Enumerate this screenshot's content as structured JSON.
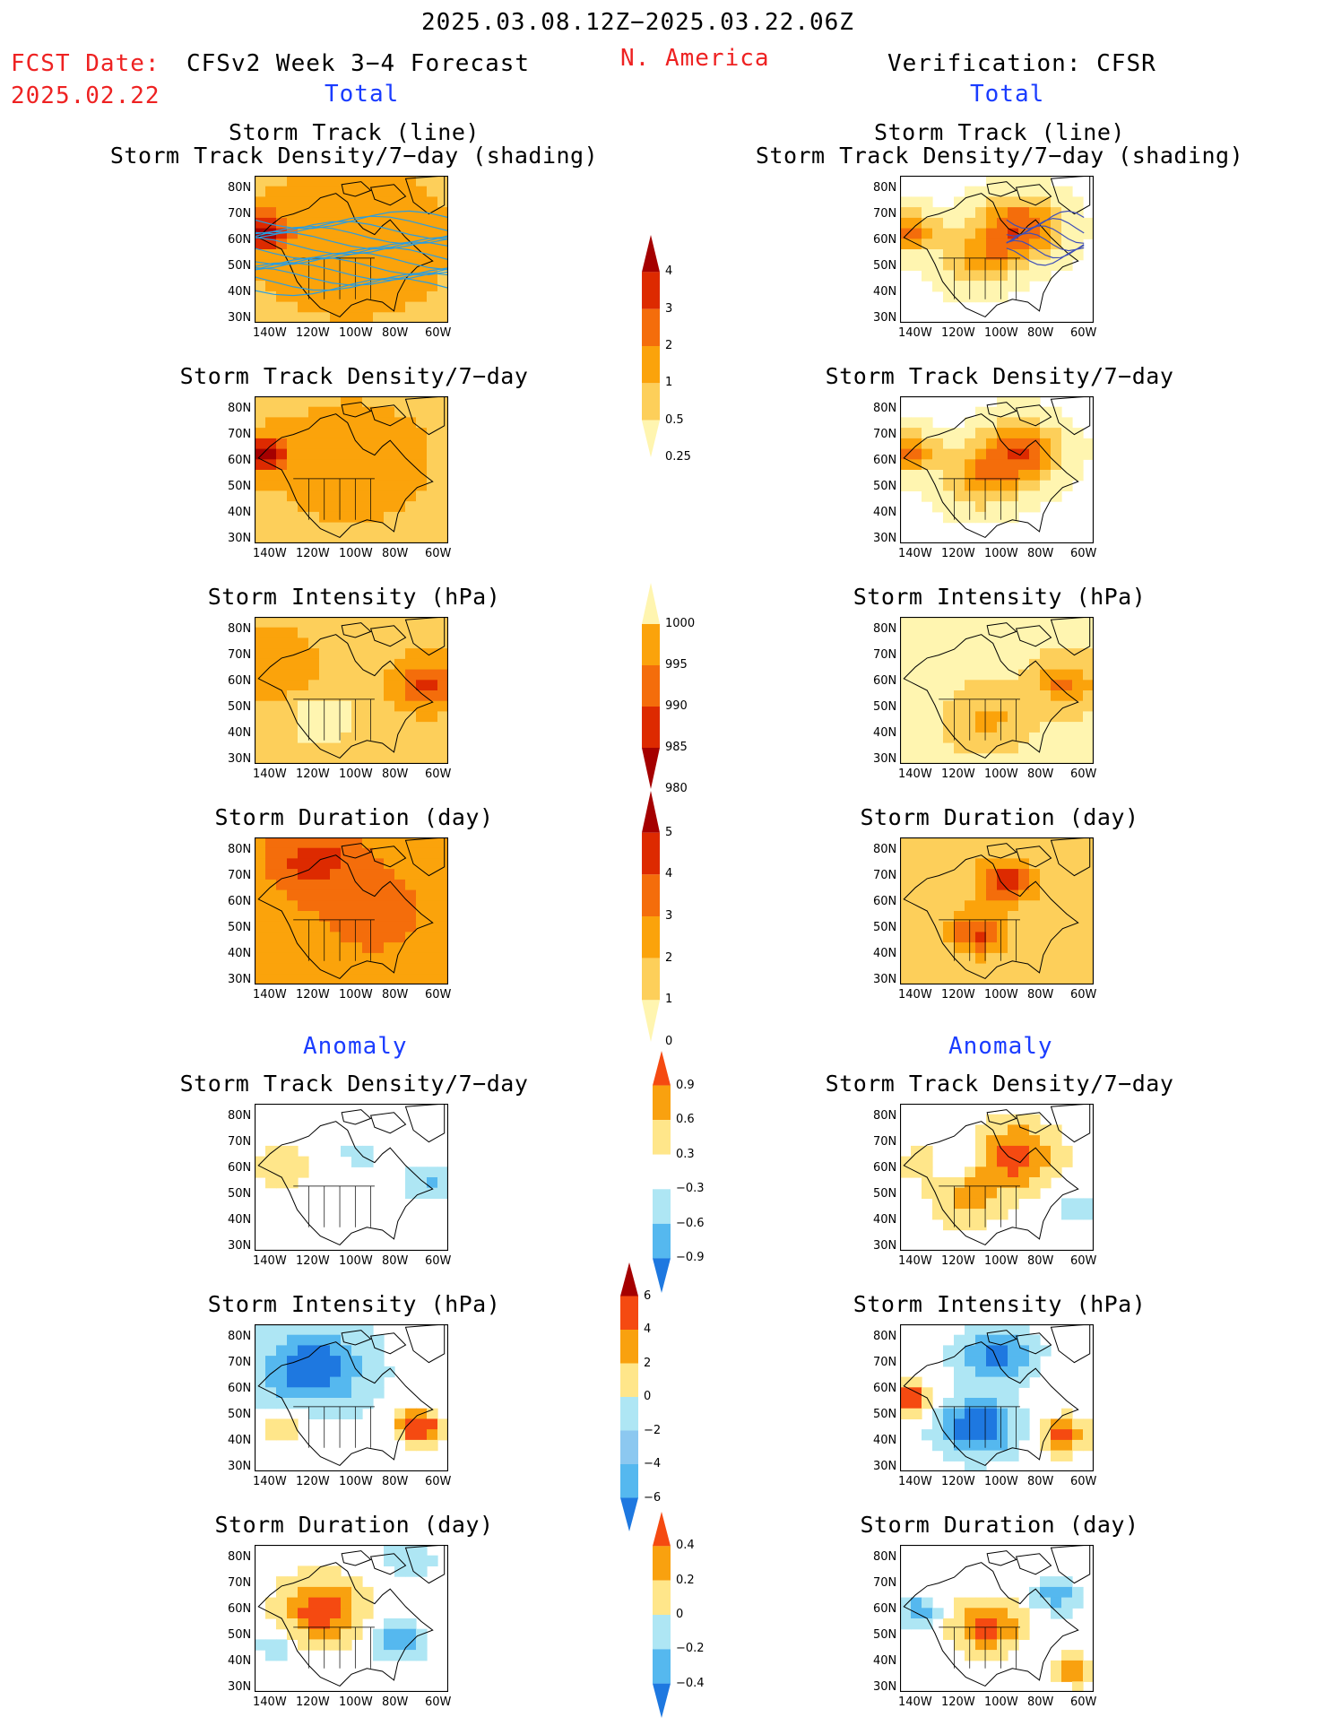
{
  "header": {
    "date_range": "2025.03.08.12Z−2025.03.22.06Z",
    "fcst_label": "FCST Date:",
    "fcst_date": "2025.02.22",
    "model": "CFSv2 Week 3−4 Forecast",
    "region": "N. America",
    "verification": "Verification: CFSR"
  },
  "sections": {
    "total": "Total",
    "anomaly": "Anomaly"
  },
  "titles": {
    "track_line": "Storm Track (line)",
    "track_shading": "Storm Track Density/7−day (shading)",
    "density": "Storm Track Density/7−day",
    "intensity": "Storm Intensity (hPa)",
    "duration": "Storm Duration (day)"
  },
  "axes": {
    "lat": [
      "80N",
      "70N",
      "60N",
      "50N",
      "40N",
      "30N"
    ],
    "lon": [
      "140W",
      "120W",
      "100W",
      "80W",
      "60W"
    ]
  },
  "colorbars": [
    {
      "name": "total-density",
      "labels": [
        "4",
        "3",
        "2",
        "1",
        "0.5",
        "0.25"
      ],
      "colors": [
        "#a50000",
        "#dd2a00",
        "#f46d0b",
        "#fba30b",
        "#fdcf5a",
        "#fff5b0"
      ]
    },
    {
      "name": "total-intensity",
      "labels": [
        "1000",
        "995",
        "990",
        "985",
        "980"
      ],
      "colors": [
        "#fff5b0",
        "#fba30b",
        "#f46d0b",
        "#dd2a00",
        "#a50000"
      ]
    },
    {
      "name": "total-duration",
      "labels": [
        "5",
        "4",
        "3",
        "2",
        "1",
        "0"
      ],
      "colors": [
        "#a50000",
        "#dd2a00",
        "#f46d0b",
        "#fba30b",
        "#fdcf5a",
        "#fff5b0"
      ]
    },
    {
      "name": "anom-density",
      "labels": [
        "0.9",
        "0.6",
        "0.3",
        "−0.3",
        "−0.6",
        "−0.9"
      ],
      "colors": [
        "#f54a11",
        "#f9a10f",
        "#ffe68a",
        "#ffffff",
        "#aee6f4",
        "#55b8ef",
        "#1e78e0"
      ]
    },
    {
      "name": "anom-intensity",
      "labels": [
        "6",
        "4",
        "2",
        "0",
        "−2",
        "−4",
        "−6"
      ],
      "colors": [
        "#a50000",
        "#f54a11",
        "#f9a10f",
        "#ffe68a",
        "#aee6f4",
        "#8cc8f0",
        "#55b8ef",
        "#1e78e0"
      ]
    },
    {
      "name": "anom-duration",
      "labels": [
        "0.4",
        "0.2",
        "0",
        "−0.2",
        "−0.4"
      ],
      "colors": [
        "#f54a11",
        "#f9a10f",
        "#ffe68a",
        "#aee6f4",
        "#55b8ef",
        "#1e78e0"
      ]
    }
  ]
}
